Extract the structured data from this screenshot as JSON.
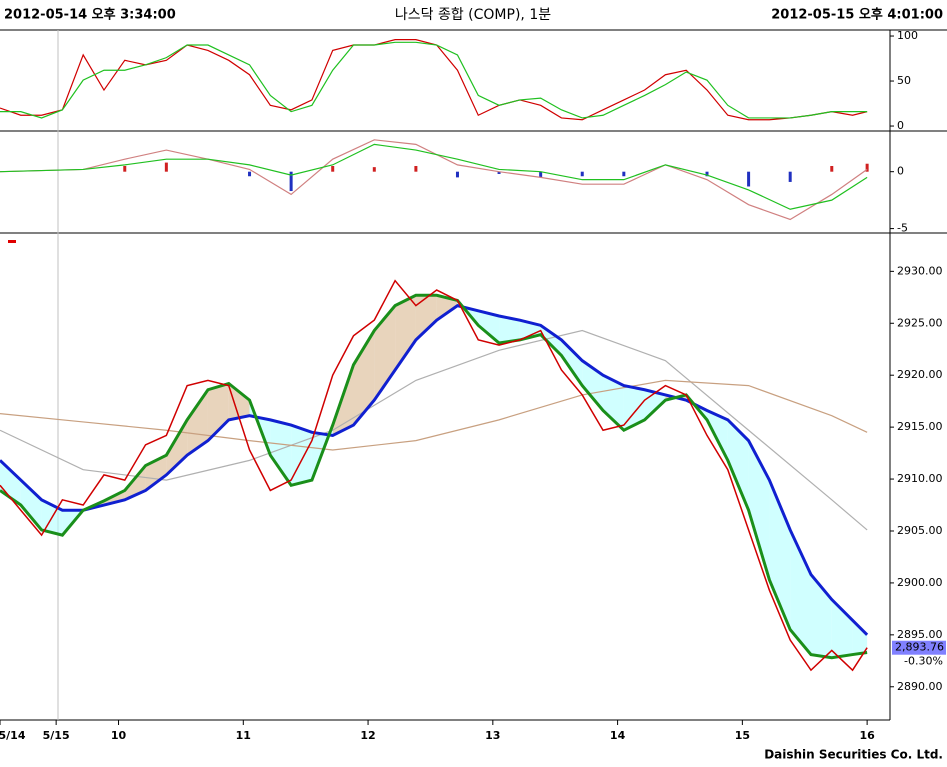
{
  "header": {
    "left": "2012-05-14 오후 3:34:00",
    "title": "나스닥 종합 (COMP), 1분",
    "right": "2012-05-15 오후 4:01:00"
  },
  "footer": "Daishin Securities Co. Ltd.",
  "chart_data": [
    {
      "type": "line",
      "xlim": [
        0,
        428
      ],
      "ylim": [
        -4.4,
        106.7
      ],
      "yticks": [
        100,
        50,
        0
      ],
      "x": [
        0,
        10,
        20,
        30,
        40,
        50,
        60,
        70,
        80,
        90,
        100,
        110,
        120,
        130,
        140,
        150,
        160,
        170,
        180,
        190,
        200,
        210,
        220,
        230,
        240,
        250,
        260,
        270,
        280,
        290,
        300,
        310,
        320,
        330,
        340,
        350,
        360,
        370,
        380,
        390,
        400,
        410,
        417
      ],
      "series": [
        {
          "color": "#d00000",
          "values": [
            20,
            12,
            12,
            18,
            79,
            40,
            73,
            68,
            73,
            90,
            84,
            73,
            57,
            23,
            18,
            29,
            84,
            90,
            90,
            96,
            96,
            90,
            62,
            12,
            23,
            29,
            23,
            9,
            7,
            18,
            29,
            40,
            57,
            62,
            40,
            12,
            7,
            7,
            9,
            12,
            16,
            12,
            16
          ]
        },
        {
          "color": "#20c020",
          "values": [
            16,
            16,
            9,
            18,
            51,
            62,
            62,
            68,
            76,
            90,
            90,
            79,
            68,
            34,
            16,
            23,
            62,
            90,
            90,
            93,
            93,
            90,
            79,
            34,
            23,
            29,
            31,
            18,
            9,
            12,
            23,
            34,
            46,
            60,
            51,
            23,
            9,
            9,
            9,
            12,
            16,
            16,
            16
          ]
        }
      ]
    },
    {
      "type": "line",
      "xlim": [
        0,
        428
      ],
      "ylim": [
        -5.3,
        3.4
      ],
      "yticks": [
        0,
        -5
      ],
      "x": [
        0,
        40,
        60,
        80,
        100,
        120,
        140,
        160,
        180,
        200,
        220,
        240,
        260,
        280,
        300,
        320,
        340,
        360,
        380,
        400,
        417
      ],
      "series": [
        {
          "type": "bar",
          "color": "#d02020",
          "negative_color": "#2030c0",
          "values": [
            0,
            0,
            0.5,
            0.8,
            0,
            -0.4,
            -1.7,
            0.5,
            0.4,
            0.5,
            -0.5,
            -0.2,
            -0.5,
            -0.4,
            -0.4,
            0,
            -0.4,
            -1.3,
            -0.9,
            0.5,
            0.7
          ]
        },
        {
          "color": "#d08080",
          "values": [
            0,
            0.2,
            1.1,
            1.9,
            1.1,
            0.2,
            -2.0,
            1.1,
            2.8,
            2.4,
            0.6,
            0,
            -0.5,
            -1.1,
            -1.1,
            0.6,
            -0.7,
            -2.9,
            -4.2,
            -2.0,
            0.2
          ]
        },
        {
          "color": "#20c020",
          "values": [
            0,
            0.2,
            0.6,
            1.1,
            1.1,
            0.6,
            -0.3,
            0.6,
            2.4,
            1.9,
            1.1,
            0.2,
            0,
            -0.7,
            -0.7,
            0.6,
            -0.3,
            -1.6,
            -3.3,
            -2.5,
            -0.5
          ]
        }
      ]
    },
    {
      "type": "line",
      "xlim": [
        0,
        428
      ],
      "ylim": [
        2886.8,
        2933.5
      ],
      "yticks": [
        {
          "value": 2930,
          "label": "2930.00"
        },
        {
          "value": 2925,
          "label": "2925.00"
        },
        {
          "value": 2920,
          "label": "2920.00"
        },
        {
          "value": 2915,
          "label": "2915.00"
        },
        {
          "value": 2910,
          "label": "2910.00"
        },
        {
          "value": 2905,
          "label": "2905.00"
        },
        {
          "value": 2900,
          "label": "2900.00"
        },
        {
          "value": 2895,
          "label": "2895.00"
        },
        {
          "value": 2890,
          "label": "2890.00"
        }
      ],
      "xticks": [
        {
          "value": 0,
          "label": "5/14"
        },
        {
          "value": 27,
          "label": "5/15"
        },
        {
          "value": 57,
          "label": "10"
        },
        {
          "value": 117,
          "label": "11"
        },
        {
          "value": 177,
          "label": "12"
        },
        {
          "value": 237,
          "label": "13"
        },
        {
          "value": 297,
          "label": "14"
        },
        {
          "value": 357,
          "label": "15"
        },
        {
          "value": 417,
          "label": "16"
        }
      ],
      "x": [
        0,
        10,
        20,
        30,
        40,
        50,
        60,
        70,
        80,
        90,
        100,
        110,
        120,
        130,
        140,
        150,
        160,
        170,
        180,
        190,
        200,
        210,
        220,
        230,
        240,
        250,
        260,
        270,
        280,
        290,
        300,
        310,
        320,
        330,
        340,
        350,
        360,
        370,
        380,
        390,
        400,
        410,
        417
      ],
      "band_colors": [
        "#d8b890",
        "#b0ffff"
      ],
      "series": [
        {
          "color": "#b0b0b0",
          "x": [
            0,
            40,
            80,
            120,
            160,
            200,
            240,
            280,
            320,
            360,
            400,
            417
          ],
          "values": [
            2914.7,
            2910.9,
            2909.9,
            2911.8,
            2914.7,
            2919.5,
            2922.4,
            2924.3,
            2921.4,
            2914.7,
            2908.0,
            2905.1
          ]
        },
        {
          "color": "#c8a080",
          "x": [
            0,
            40,
            80,
            120,
            160,
            200,
            240,
            280,
            320,
            360,
            400,
            417
          ],
          "values": [
            2916.3,
            2915.5,
            2914.7,
            2913.7,
            2912.8,
            2913.7,
            2915.7,
            2918.1,
            2919.5,
            2919.0,
            2916.1,
            2914.5
          ]
        },
        {
          "color": "#1020d0",
          "values": [
            2911.8,
            2909.9,
            2908.0,
            2907.0,
            2907.0,
            2907.5,
            2908.0,
            2908.9,
            2910.4,
            2912.3,
            2913.7,
            2915.7,
            2916.1,
            2915.7,
            2915.2,
            2914.5,
            2914.2,
            2915.2,
            2917.6,
            2920.5,
            2923.4,
            2925.3,
            2926.7,
            2926.2,
            2925.7,
            2925.3,
            2924.8,
            2923.4,
            2921.4,
            2920.0,
            2919.0,
            2918.6,
            2918.1,
            2917.6,
            2916.6,
            2915.7,
            2913.7,
            2909.9,
            2905.1,
            2900.8,
            2898.4,
            2896.4,
            2895.0
          ]
        },
        {
          "color": "#1a8f1a",
          "values": [
            2908.9,
            2907.5,
            2905.1,
            2904.6,
            2907.0,
            2907.9,
            2908.9,
            2911.3,
            2912.3,
            2915.7,
            2918.6,
            2919.2,
            2917.6,
            2912.3,
            2909.4,
            2909.9,
            2915.2,
            2921.0,
            2924.3,
            2926.7,
            2927.7,
            2927.7,
            2927.2,
            2924.8,
            2923.1,
            2923.4,
            2923.9,
            2921.9,
            2919.0,
            2916.6,
            2914.7,
            2915.7,
            2917.6,
            2918.1,
            2915.7,
            2911.8,
            2907.0,
            2900.3,
            2895.5,
            2893.1,
            2892.8,
            2893.1,
            2893.3
          ]
        },
        {
          "color": "#d00000",
          "values": [
            2909.4,
            2907.0,
            2904.6,
            2908.0,
            2907.5,
            2910.4,
            2909.9,
            2913.3,
            2914.2,
            2919.0,
            2919.5,
            2919.0,
            2912.8,
            2908.9,
            2909.9,
            2913.7,
            2920.0,
            2923.8,
            2925.3,
            2929.1,
            2926.7,
            2928.2,
            2927.2,
            2923.4,
            2922.9,
            2923.4,
            2924.3,
            2920.5,
            2918.1,
            2914.7,
            2915.2,
            2917.6,
            2919.0,
            2918.1,
            2914.2,
            2910.9,
            2905.1,
            2899.3,
            2894.5,
            2891.6,
            2893.5,
            2891.6,
            2893.76
          ]
        }
      ],
      "last_price": {
        "value": 2893.76,
        "label": "2,893.76"
      },
      "change": {
        "value": -0.3,
        "label": "-0.30%"
      }
    }
  ]
}
